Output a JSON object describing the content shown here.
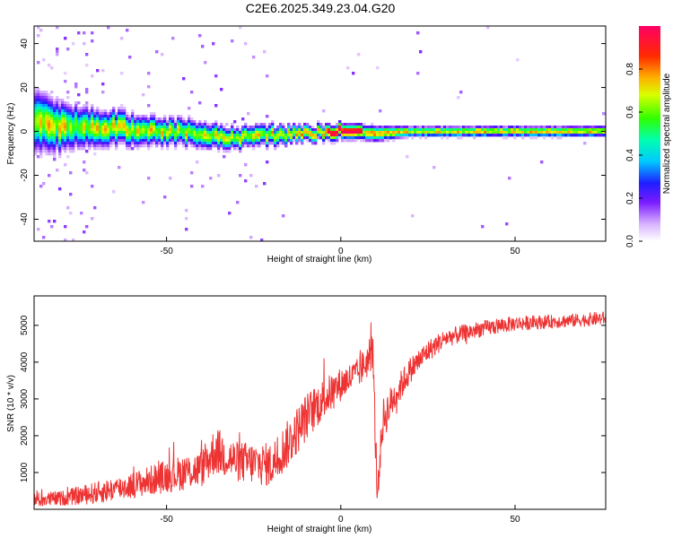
{
  "title": "C2E6.2025.349.23.04.G20",
  "chart_data": [
    {
      "type": "heatmap",
      "panel": "top",
      "xlabel": "Height of straight line (km)",
      "ylabel": "Frequency (Hz)",
      "xlim": [
        -88,
        76
      ],
      "ylim": [
        -50,
        48
      ],
      "xticks": [
        -50,
        0,
        50
      ],
      "yticks": [
        -40,
        -20,
        0,
        20,
        40
      ],
      "colorbar": {
        "label": "Normalized spectral amplitude",
        "range": [
          0,
          1
        ],
        "ticks": [
          "0.0",
          "0.2",
          "0.4",
          "0.6",
          "0.8"
        ],
        "colormap": "rainbow (white-violet-blue-cyan-green-yellow-orange-red-magenta)"
      },
      "ridge": {
        "description": "Dominant energy near 0 Hz across all heights; broad and noisy below about -20 km, narrow and strong above 0 km",
        "x": [
          -88,
          -80,
          -70,
          -60,
          -50,
          -40,
          -30,
          -20,
          -10,
          0,
          5,
          10,
          20,
          30,
          40,
          50,
          60,
          70,
          76
        ],
        "center_hz": [
          4,
          2,
          2,
          1,
          0,
          -1,
          -3,
          -2,
          -1,
          0,
          0,
          -1,
          0,
          0,
          0,
          0,
          0,
          0,
          0
        ],
        "halfwidth_hz": [
          12,
          9,
          7,
          6,
          5,
          5,
          4,
          4,
          3,
          3,
          3,
          3,
          2,
          2,
          2,
          2,
          2,
          2,
          2
        ]
      }
    },
    {
      "type": "line",
      "panel": "bottom",
      "xlabel": "Height of straight line (km)",
      "ylabel": "SNR (10 * v/v)",
      "xlim": [
        -88,
        76
      ],
      "ylim": [
        0,
        5800
      ],
      "xticks": [
        -50,
        0,
        50
      ],
      "yticks": [
        1000,
        2000,
        3000,
        4000,
        5000
      ],
      "series": [
        {
          "name": "SNR",
          "color": "#ee3333",
          "x": [
            -88,
            -80,
            -70,
            -60,
            -50,
            -40,
            -36,
            -30,
            -20,
            -15,
            -10,
            -5,
            0,
            5,
            8,
            9,
            10,
            10.5,
            12,
            15,
            20,
            25,
            30,
            40,
            50,
            60,
            70,
            76
          ],
          "mean": [
            250,
            300,
            450,
            650,
            900,
            1100,
            1600,
            1300,
            1200,
            1800,
            2500,
            3000,
            3400,
            3700,
            4100,
            4500,
            1800,
            400,
            2400,
            3000,
            3800,
            4300,
            4650,
            4900,
            5050,
            5100,
            5150,
            5200
          ],
          "noise": [
            200,
            200,
            300,
            350,
            450,
            500,
            650,
            550,
            600,
            650,
            650,
            550,
            450,
            400,
            500,
            700,
            700,
            300,
            600,
            450,
            350,
            300,
            250,
            220,
            200,
            180,
            180,
            180
          ]
        }
      ]
    }
  ]
}
